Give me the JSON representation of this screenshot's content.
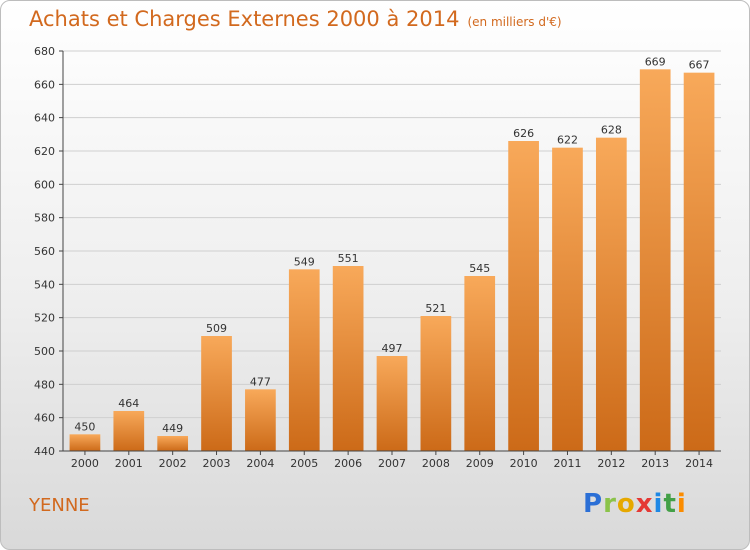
{
  "header": {
    "title": "Achats et Charges Externes 2000 à 2014",
    "unit": "(en milliers d'€)"
  },
  "place": "YENNE",
  "logo": [
    "P",
    "r",
    "o",
    "x",
    "i",
    "t",
    "i"
  ],
  "colors": {
    "bar_light": "#f8a95a",
    "bar_dark": "#cc6a18",
    "title": "#d2691e"
  },
  "chart_data": {
    "type": "bar",
    "title": "Achats et Charges Externes 2000 à 2014",
    "categories": [
      "2000",
      "2001",
      "2002",
      "2003",
      "2004",
      "2005",
      "2006",
      "2007",
      "2008",
      "2009",
      "2010",
      "2011",
      "2012",
      "2013",
      "2014"
    ],
    "values": [
      450,
      464,
      449,
      509,
      477,
      549,
      551,
      497,
      521,
      545,
      626,
      622,
      628,
      669,
      667
    ],
    "ylim": [
      440,
      680
    ],
    "yticks": [
      440,
      460,
      480,
      500,
      520,
      540,
      560,
      580,
      600,
      620,
      640,
      660,
      680
    ],
    "grid": true
  }
}
